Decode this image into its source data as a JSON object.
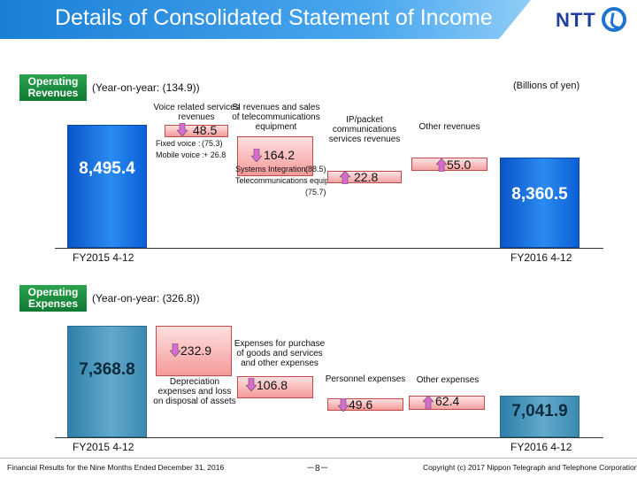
{
  "header": {
    "title": "Details of Consolidated Statement of Income",
    "logo_text": "NTT"
  },
  "chart_data": [
    {
      "type": "waterfall",
      "title": "Operating Revenues",
      "subtitle": "(Year-on-year: (134.9))",
      "unit": "(Billions of yen)",
      "start": {
        "label": "FY2015 4-12",
        "value": "8,495.4",
        "amount": 8495.4
      },
      "end": {
        "label": "FY2016 4-12",
        "value": "8,360.5",
        "amount": 8360.5
      },
      "steps": [
        {
          "label": "Voice related services revenues",
          "value": "48.5",
          "amount": -48.5,
          "direction": "down",
          "details": [
            {
              "name": "Fixed voice :",
              "value": "(75.3)"
            },
            {
              "name": "Mobile voice :",
              "value": "+ 26.8"
            }
          ]
        },
        {
          "label": "SI revenues and sales of telecommunications equipment",
          "value": "164.2",
          "amount": -164.2,
          "direction": "down",
          "details": [
            {
              "name": "Systems Integration:",
              "value": "(88.5)"
            },
            {
              "name": "Telecommunications equipment:",
              "value": "(75.7)"
            }
          ]
        },
        {
          "label": "IP/packet communications services revenues",
          "value": "22.8",
          "amount": 22.8,
          "direction": "up"
        },
        {
          "label": "Other revenues",
          "value": "55.0",
          "amount": 55.0,
          "direction": "up"
        }
      ]
    },
    {
      "type": "waterfall",
      "title": "Operating Expenses",
      "subtitle": "(Year-on-year: (326.8))",
      "start": {
        "label": "FY2015 4-12",
        "value": "7,368.8",
        "amount": 7368.8
      },
      "end": {
        "label": "FY2016 4-12",
        "value": "7,041.9",
        "amount": 7041.9
      },
      "steps": [
        {
          "label": "Depreciation expenses and loss on disposal of assets",
          "value": "232.9",
          "amount": -232.9,
          "direction": "down"
        },
        {
          "label": "Expenses for purchase of goods and services and other expenses",
          "value": "106.8",
          "amount": -106.8,
          "direction": "down"
        },
        {
          "label": "Personnel expenses",
          "value": "49.6",
          "amount": -49.6,
          "direction": "down"
        },
        {
          "label": "Other expenses",
          "value": "62.4",
          "amount": 62.4,
          "direction": "up"
        }
      ]
    }
  ],
  "sections": {
    "revenues_badge": [
      "Operating",
      "Revenues"
    ],
    "expenses_badge": [
      "Operating",
      "Expenses"
    ]
  },
  "footer": {
    "left": "Financial Results for the Nine Months Ended December 31, 2016",
    "page": "－8－",
    "right": "Copyright (c) 2017  Nippon Telegraph and Telephone Corporation"
  },
  "colors": {
    "revenue_bar": "#1a73e0",
    "expense_bar": "#4a97bf",
    "decrease_red": "#f6a3a3",
    "decrease_blue": "#b9d8f7",
    "badge_green": "#1b8c3e",
    "title_blue": "#1a7fd6"
  }
}
